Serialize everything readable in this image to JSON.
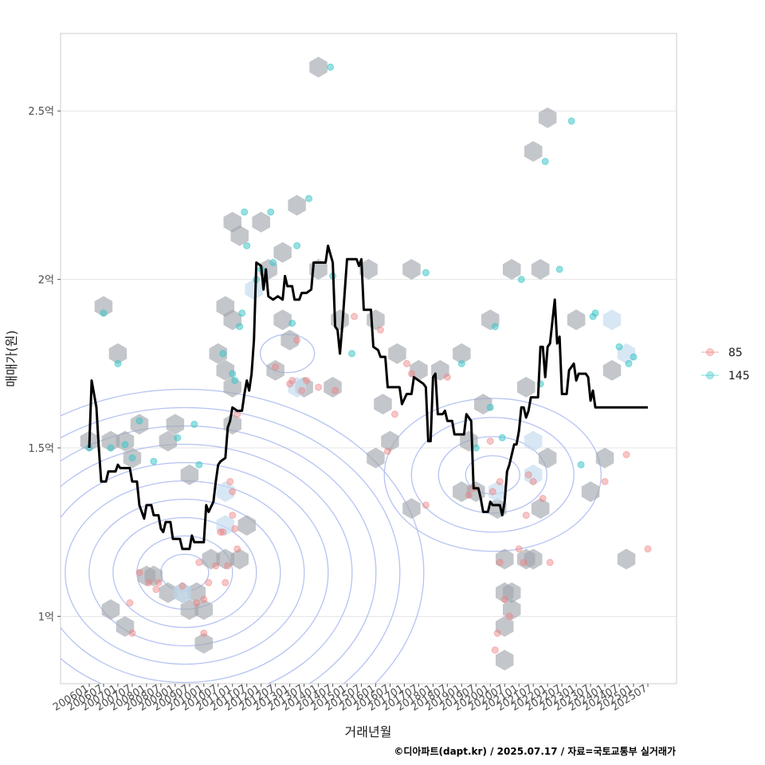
{
  "chart_data": {
    "type": "line",
    "xlabel": "거래년월",
    "ylabel": "매매가(원)",
    "caption": "©디아파트(dapt.kr) / 2025.07.17 / 자료=국토교통부 실거래가",
    "x_range": [
      "2006-01",
      "2025-07"
    ],
    "ylim": [
      0.8,
      2.73
    ],
    "y_ticks": [
      {
        "value": 1.0,
        "label": "1억"
      },
      {
        "value": 1.5,
        "label": "1.5억"
      },
      {
        "value": 2.0,
        "label": "2억"
      },
      {
        "value": 2.5,
        "label": "2.5억"
      }
    ],
    "x_ticks": [
      "200601",
      "200607",
      "200701",
      "200707",
      "200801",
      "200807",
      "200901",
      "200907",
      "201001",
      "201007",
      "201101",
      "201107",
      "201201",
      "201207",
      "201301",
      "201307",
      "201401",
      "201407",
      "201501",
      "201507",
      "201601",
      "201607",
      "201701",
      "201707",
      "201801",
      "201807",
      "201901",
      "201907",
      "202001",
      "202007",
      "202101",
      "202107",
      "202201",
      "202207",
      "202301",
      "202307",
      "202401",
      "202407",
      "202501",
      "202507"
    ],
    "legend": {
      "placement": "right",
      "items": [
        {
          "label": "85",
          "color": "#f08080"
        },
        {
          "label": "145",
          "color": "#3fc6c8"
        }
      ]
    },
    "grid": true,
    "colors": {
      "line": "#000000",
      "hex": "#a3a8ad",
      "hex_light": "#c6ddf0",
      "contour": "#a8b8f0",
      "panel_border": "#cccccc",
      "grid": "#e5e5e5"
    },
    "trend_line": [
      [
        "2006-01",
        1.5
      ],
      [
        "2006-02",
        1.7
      ],
      [
        "2006-04",
        1.62
      ],
      [
        "2006-05",
        1.5
      ],
      [
        "2006-06",
        1.4
      ],
      [
        "2006-08",
        1.4
      ],
      [
        "2006-09",
        1.43
      ],
      [
        "2006-12",
        1.43
      ],
      [
        "2007-01",
        1.45
      ],
      [
        "2007-02",
        1.44
      ],
      [
        "2007-06",
        1.44
      ],
      [
        "2007-07",
        1.4
      ],
      [
        "2007-09",
        1.4
      ],
      [
        "2007-10",
        1.33
      ],
      [
        "2007-12",
        1.29
      ],
      [
        "2008-01",
        1.33
      ],
      [
        "2008-03",
        1.33
      ],
      [
        "2008-04",
        1.3
      ],
      [
        "2008-06",
        1.3
      ],
      [
        "2008-07",
        1.26
      ],
      [
        "2008-08",
        1.25
      ],
      [
        "2008-09",
        1.28
      ],
      [
        "2008-11",
        1.28
      ],
      [
        "2008-12",
        1.23
      ],
      [
        "2009-03",
        1.23
      ],
      [
        "2009-04",
        1.2
      ],
      [
        "2009-07",
        1.2
      ],
      [
        "2009-08",
        1.24
      ],
      [
        "2009-09",
        1.22
      ],
      [
        "2010-01",
        1.22
      ],
      [
        "2010-02",
        1.33
      ],
      [
        "2010-03",
        1.31
      ],
      [
        "2010-05",
        1.34
      ],
      [
        "2010-06",
        1.4
      ],
      [
        "2010-07",
        1.45
      ],
      [
        "2010-08",
        1.46
      ],
      [
        "2010-10",
        1.47
      ],
      [
        "2010-11",
        1.56
      ],
      [
        "2010-12",
        1.58
      ],
      [
        "2011-01",
        1.62
      ],
      [
        "2011-03",
        1.61
      ],
      [
        "2011-05",
        1.61
      ],
      [
        "2011-06",
        1.66
      ],
      [
        "2011-07",
        1.7
      ],
      [
        "2011-08",
        1.67
      ],
      [
        "2011-09",
        1.72
      ],
      [
        "2011-10",
        1.82
      ],
      [
        "2011-11",
        2.05
      ],
      [
        "2012-01",
        2.04
      ],
      [
        "2012-02",
        1.97
      ],
      [
        "2012-03",
        2.03
      ],
      [
        "2012-04",
        1.95
      ],
      [
        "2012-06",
        1.94
      ],
      [
        "2012-08",
        1.95
      ],
      [
        "2012-10",
        1.94
      ],
      [
        "2012-11",
        2.01
      ],
      [
        "2012-12",
        1.98
      ],
      [
        "2013-02",
        1.98
      ],
      [
        "2013-03",
        1.94
      ],
      [
        "2013-05",
        1.94
      ],
      [
        "2013-06",
        1.96
      ],
      [
        "2013-08",
        1.96
      ],
      [
        "2013-10",
        1.97
      ],
      [
        "2013-11",
        2.05
      ],
      [
        "2014-04",
        2.05
      ],
      [
        "2014-05",
        2.1
      ],
      [
        "2014-07",
        2.05
      ],
      [
        "2014-08",
        1.86
      ],
      [
        "2014-09",
        1.85
      ],
      [
        "2014-10",
        1.78
      ],
      [
        "2014-11",
        1.86
      ],
      [
        "2015-01",
        2.06
      ],
      [
        "2015-05",
        2.06
      ],
      [
        "2015-06",
        2.04
      ],
      [
        "2015-07",
        2.06
      ],
      [
        "2015-08",
        1.91
      ],
      [
        "2015-11",
        1.91
      ],
      [
        "2015-12",
        1.8
      ],
      [
        "2016-02",
        1.79
      ],
      [
        "2016-03",
        1.77
      ],
      [
        "2016-05",
        1.77
      ],
      [
        "2016-06",
        1.68
      ],
      [
        "2016-11",
        1.68
      ],
      [
        "2016-12",
        1.63
      ],
      [
        "2017-02",
        1.66
      ],
      [
        "2017-04",
        1.66
      ],
      [
        "2017-05",
        1.71
      ],
      [
        "2017-07",
        1.7
      ],
      [
        "2017-09",
        1.69
      ],
      [
        "2017-10",
        1.68
      ],
      [
        "2017-11",
        1.52
      ],
      [
        "2017-12",
        1.52
      ],
      [
        "2018-01",
        1.71
      ],
      [
        "2018-02",
        1.72
      ],
      [
        "2018-03",
        1.6
      ],
      [
        "2018-05",
        1.6
      ],
      [
        "2018-06",
        1.61
      ],
      [
        "2018-07",
        1.58
      ],
      [
        "2018-09",
        1.58
      ],
      [
        "2018-10",
        1.54
      ],
      [
        "2019-02",
        1.54
      ],
      [
        "2019-03",
        1.6
      ],
      [
        "2019-05",
        1.58
      ],
      [
        "2019-06",
        1.38
      ],
      [
        "2019-08",
        1.38
      ],
      [
        "2019-09",
        1.35
      ],
      [
        "2019-10",
        1.31
      ],
      [
        "2019-12",
        1.31
      ],
      [
        "2020-01",
        1.34
      ],
      [
        "2020-02",
        1.33
      ],
      [
        "2020-03",
        1.33
      ],
      [
        "2020-05",
        1.33
      ],
      [
        "2020-06",
        1.3
      ],
      [
        "2020-07",
        1.34
      ],
      [
        "2020-08",
        1.43
      ],
      [
        "2020-09",
        1.45
      ],
      [
        "2020-11",
        1.51
      ],
      [
        "2020-12",
        1.51
      ],
      [
        "2021-01",
        1.55
      ],
      [
        "2021-02",
        1.62
      ],
      [
        "2021-03",
        1.62
      ],
      [
        "2021-04",
        1.59
      ],
      [
        "2021-05",
        1.61
      ],
      [
        "2021-06",
        1.65
      ],
      [
        "2021-09",
        1.65
      ],
      [
        "2021-10",
        1.8
      ],
      [
        "2021-11",
        1.8
      ],
      [
        "2021-12",
        1.71
      ],
      [
        "2022-01",
        1.8
      ],
      [
        "2022-02",
        1.81
      ],
      [
        "2022-04",
        1.94
      ],
      [
        "2022-05",
        1.81
      ],
      [
        "2022-06",
        1.83
      ],
      [
        "2022-07",
        1.66
      ],
      [
        "2022-09",
        1.66
      ],
      [
        "2022-10",
        1.73
      ],
      [
        "2022-12",
        1.75
      ],
      [
        "2023-01",
        1.7
      ],
      [
        "2023-02",
        1.72
      ],
      [
        "2023-05",
        1.72
      ],
      [
        "2023-06",
        1.71
      ],
      [
        "2023-07",
        1.64
      ],
      [
        "2023-08",
        1.67
      ],
      [
        "2023-09",
        1.62
      ],
      [
        "2025-07",
        1.62
      ]
    ],
    "points_85": [
      [
        "2007-06",
        1.04
      ],
      [
        "2007-07",
        0.95
      ],
      [
        "2007-10",
        1.13
      ],
      [
        "2008-02",
        1.1
      ],
      [
        "2008-05",
        1.08
      ],
      [
        "2008-06",
        1.1
      ],
      [
        "2009-04",
        1.09
      ],
      [
        "2009-10",
        1.04
      ],
      [
        "2009-11",
        1.16
      ],
      [
        "2010-01",
        1.05
      ],
      [
        "2010-01",
        0.95
      ],
      [
        "2010-03",
        1.1
      ],
      [
        "2010-06",
        1.15
      ],
      [
        "2010-08",
        1.25
      ],
      [
        "2010-09",
        1.25
      ],
      [
        "2010-10",
        1.1
      ],
      [
        "2010-11",
        1.15
      ],
      [
        "2010-12",
        1.4
      ],
      [
        "2011-01",
        1.37
      ],
      [
        "2011-01",
        1.3
      ],
      [
        "2011-02",
        1.26
      ],
      [
        "2011-03",
        1.2
      ],
      [
        "2011-03",
        1.6
      ],
      [
        "2012-07",
        1.74
      ],
      [
        "2013-01",
        1.69
      ],
      [
        "2013-02",
        1.7
      ],
      [
        "2013-04",
        1.82
      ],
      [
        "2013-06",
        1.67
      ],
      [
        "2013-08",
        1.7
      ],
      [
        "2014-01",
        1.68
      ],
      [
        "2014-08",
        1.67
      ],
      [
        "2015-04",
        1.89
      ],
      [
        "2016-03",
        1.85
      ],
      [
        "2016-06",
        1.49
      ],
      [
        "2016-09",
        1.6
      ],
      [
        "2017-02",
        1.75
      ],
      [
        "2017-04",
        1.72
      ],
      [
        "2017-10",
        1.33
      ],
      [
        "2018-07",
        1.71
      ],
      [
        "2019-04",
        1.36
      ],
      [
        "2019-06",
        1.38
      ],
      [
        "2020-01",
        1.52
      ],
      [
        "2020-02",
        1.37
      ],
      [
        "2020-03",
        0.9
      ],
      [
        "2020-04",
        0.95
      ],
      [
        "2020-05",
        1.16
      ],
      [
        "2020-05",
        1.4
      ],
      [
        "2020-07",
        1.05
      ],
      [
        "2020-09",
        1.0
      ],
      [
        "2021-01",
        1.2
      ],
      [
        "2021-03",
        1.16
      ],
      [
        "2021-04",
        1.3
      ],
      [
        "2021-05",
        1.42
      ],
      [
        "2021-07",
        1.4
      ],
      [
        "2021-11",
        1.35
      ],
      [
        "2022-02",
        1.16
      ],
      [
        "2024-01",
        1.4
      ],
      [
        "2024-10",
        1.48
      ],
      [
        "2025-07",
        1.2
      ]
    ],
    "points_145": [
      [
        "2006-01",
        1.5
      ],
      [
        "2006-07",
        1.9
      ],
      [
        "2006-10",
        1.5
      ],
      [
        "2007-01",
        1.75
      ],
      [
        "2007-04",
        1.51
      ],
      [
        "2007-07",
        1.47
      ],
      [
        "2007-10",
        1.58
      ],
      [
        "2008-04",
        1.46
      ],
      [
        "2009-02",
        1.53
      ],
      [
        "2009-09",
        1.57
      ],
      [
        "2009-11",
        1.45
      ],
      [
        "2010-09",
        1.78
      ],
      [
        "2011-01",
        1.72
      ],
      [
        "2011-02",
        1.7
      ],
      [
        "2011-04",
        1.86
      ],
      [
        "2011-05",
        1.9
      ],
      [
        "2011-06",
        2.2
      ],
      [
        "2011-07",
        2.1
      ],
      [
        "2011-11",
        2.0
      ],
      [
        "2012-01",
        2.03
      ],
      [
        "2012-05",
        2.2
      ],
      [
        "2012-06",
        2.05
      ],
      [
        "2013-02",
        1.87
      ],
      [
        "2013-04",
        2.1
      ],
      [
        "2013-09",
        2.24
      ],
      [
        "2014-06",
        2.63
      ],
      [
        "2014-07",
        2.01
      ],
      [
        "2015-03",
        1.78
      ],
      [
        "2017-10",
        2.02
      ],
      [
        "2019-01",
        1.75
      ],
      [
        "2019-07",
        1.5
      ],
      [
        "2020-01",
        1.62
      ],
      [
        "2020-03",
        1.86
      ],
      [
        "2020-06",
        1.53
      ],
      [
        "2021-02",
        2.0
      ],
      [
        "2021-10",
        1.69
      ],
      [
        "2021-12",
        2.35
      ],
      [
        "2022-06",
        2.03
      ],
      [
        "2022-11",
        2.47
      ],
      [
        "2023-08",
        1.89
      ],
      [
        "2023-09",
        1.9
      ],
      [
        "2024-07",
        1.8
      ],
      [
        "2024-11",
        1.75
      ],
      [
        "2025-01",
        1.77
      ],
      [
        "2023-03",
        1.45
      ]
    ],
    "hexbins": [
      [
        "2006-01",
        1.52
      ],
      [
        "2006-07",
        1.92
      ],
      [
        "2006-10",
        1.52
      ],
      [
        "2006-10",
        1.02
      ],
      [
        "2007-01",
        1.78
      ],
      [
        "2007-04",
        1.52
      ],
      [
        "2007-04",
        0.97
      ],
      [
        "2007-07",
        1.47
      ],
      [
        "2007-10",
        1.57
      ],
      [
        "2008-01",
        1.12
      ],
      [
        "2008-04",
        1.12
      ],
      [
        "2008-10",
        1.52
      ],
      [
        "2008-10",
        1.07
      ],
      [
        "2009-01",
        1.57
      ],
      [
        "2009-04",
        1.07
      ],
      [
        "2009-07",
        1.42
      ],
      [
        "2009-07",
        1.02
      ],
      [
        "2009-10",
        1.07
      ],
      [
        "2010-01",
        1.02
      ],
      [
        "2010-01",
        0.92
      ],
      [
        "2010-04",
        1.17
      ],
      [
        "2010-07",
        1.78
      ],
      [
        "2010-10",
        1.73
      ],
      [
        "2010-10",
        1.92
      ],
      [
        "2010-10",
        1.17
      ],
      [
        "2011-01",
        1.88
      ],
      [
        "2011-01",
        1.68
      ],
      [
        "2011-01",
        2.17
      ],
      [
        "2011-01",
        1.57
      ],
      [
        "2011-04",
        2.13
      ],
      [
        "2011-04",
        1.17
      ],
      [
        "2011-07",
        1.27
      ],
      [
        "2012-01",
        2.17
      ],
      [
        "2012-04",
        2.03
      ],
      [
        "2012-07",
        1.73
      ],
      [
        "2012-10",
        2.08
      ],
      [
        "2012-10",
        1.88
      ],
      [
        "2013-01",
        1.82
      ],
      [
        "2013-04",
        2.22
      ],
      [
        "2013-07",
        1.68
      ],
      [
        "2014-01",
        2.63
      ],
      [
        "2014-01",
        2.03
      ],
      [
        "2014-07",
        1.68
      ],
      [
        "2014-10",
        1.88
      ],
      [
        "2015-10",
        2.03
      ],
      [
        "2016-01",
        1.88
      ],
      [
        "2016-01",
        1.47
      ],
      [
        "2016-04",
        1.63
      ],
      [
        "2016-07",
        1.52
      ],
      [
        "2016-10",
        1.78
      ],
      [
        "2017-04",
        2.03
      ],
      [
        "2017-04",
        1.32
      ],
      [
        "2017-07",
        1.73
      ],
      [
        "2018-04",
        1.73
      ],
      [
        "2019-01",
        1.78
      ],
      [
        "2019-01",
        1.37
      ],
      [
        "2019-04",
        1.52
      ],
      [
        "2019-07",
        1.37
      ],
      [
        "2019-10",
        1.63
      ],
      [
        "2020-01",
        1.88
      ],
      [
        "2020-04",
        1.32
      ],
      [
        "2020-07",
        1.17
      ],
      [
        "2020-07",
        1.07
      ],
      [
        "2020-07",
        0.97
      ],
      [
        "2020-07",
        0.87
      ],
      [
        "2020-10",
        2.03
      ],
      [
        "2020-10",
        1.07
      ],
      [
        "2020-10",
        1.02
      ],
      [
        "2021-04",
        1.68
      ],
      [
        "2021-04",
        1.17
      ],
      [
        "2021-07",
        2.38
      ],
      [
        "2021-07",
        1.17
      ],
      [
        "2021-10",
        2.03
      ],
      [
        "2021-10",
        1.32
      ],
      [
        "2022-01",
        2.48
      ],
      [
        "2022-01",
        1.47
      ],
      [
        "2023-01",
        1.88
      ],
      [
        "2023-07",
        1.37
      ],
      [
        "2024-01",
        1.47
      ],
      [
        "2024-04",
        1.73
      ],
      [
        "2024-10",
        1.17
      ]
    ],
    "hexbins_light": [
      [
        "2009-04",
        1.07
      ],
      [
        "2010-10",
        1.37
      ],
      [
        "2010-10",
        1.27
      ],
      [
        "2011-10",
        1.97
      ],
      [
        "2013-04",
        1.68
      ],
      [
        "2020-04",
        1.37
      ],
      [
        "2021-07",
        1.42
      ],
      [
        "2021-07",
        1.52
      ],
      [
        "2024-04",
        1.88
      ],
      [
        "2024-10",
        1.78
      ]
    ],
    "density_peaks": [
      {
        "x": "2009-05",
        "y": 1.13,
        "count": 10
      },
      {
        "x": "2012-12",
        "y": 1.78,
        "count": 1
      },
      {
        "x": "2020-02",
        "y": 1.42,
        "count": 4
      }
    ]
  }
}
